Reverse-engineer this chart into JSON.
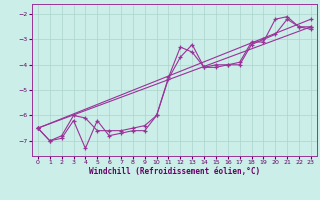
{
  "xlabel": "Windchill (Refroidissement éolien,°C)",
  "bg_color": "#cceee8",
  "grid_color": "#aad4cc",
  "line_color": "#993399",
  "xlim": [
    -0.5,
    23.5
  ],
  "ylim": [
    -7.6,
    -1.6
  ],
  "yticks": [
    -7,
    -6,
    -5,
    -4,
    -3,
    -2
  ],
  "xticks": [
    0,
    1,
    2,
    3,
    4,
    5,
    6,
    7,
    8,
    9,
    10,
    11,
    12,
    13,
    14,
    15,
    16,
    17,
    18,
    19,
    20,
    21,
    22,
    23
  ],
  "line1_x": [
    0,
    1,
    2,
    3,
    4,
    5,
    6,
    7,
    8,
    9,
    10,
    11,
    12,
    13,
    14,
    15,
    16,
    17,
    18,
    19,
    20,
    21,
    22,
    23
  ],
  "line1_y": [
    -6.5,
    -7.0,
    -6.8,
    -6.0,
    -6.1,
    -6.6,
    -6.6,
    -6.6,
    -6.5,
    -6.4,
    -6.0,
    -4.5,
    -3.3,
    -3.5,
    -4.1,
    -4.1,
    -4.0,
    -3.9,
    -3.1,
    -3.1,
    -2.2,
    -2.1,
    -2.5,
    -2.5
  ],
  "line2_x": [
    0,
    1,
    2,
    3,
    4,
    5,
    6,
    7,
    8,
    9,
    10,
    11,
    12,
    13,
    14,
    15,
    16,
    17,
    18,
    19,
    20,
    21,
    22,
    23
  ],
  "line2_y": [
    -6.5,
    -7.0,
    -6.9,
    -6.2,
    -7.3,
    -6.2,
    -6.8,
    -6.7,
    -6.6,
    -6.6,
    -6.0,
    -4.55,
    -3.7,
    -3.2,
    -4.1,
    -4.0,
    -4.0,
    -4.0,
    -3.2,
    -3.0,
    -2.8,
    -2.2,
    -2.5,
    -2.6
  ],
  "line3_x": [
    0,
    23
  ],
  "line3_y": [
    -6.5,
    -2.2
  ],
  "line4_x": [
    0,
    23
  ],
  "line4_y": [
    -6.5,
    -2.5
  ]
}
